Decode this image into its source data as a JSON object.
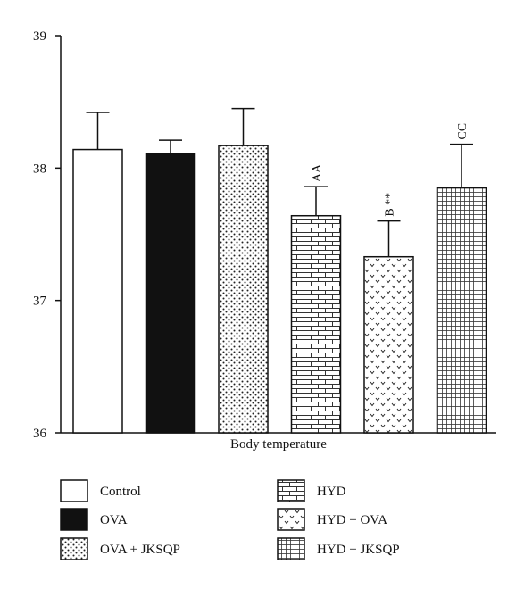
{
  "chart_data": {
    "type": "bar",
    "xlabel": "Body temperature",
    "ylabel": "",
    "ylim": [
      36,
      39
    ],
    "yticks": [
      36,
      37,
      38,
      39
    ],
    "grid": false,
    "legend_position": "bottom",
    "series": [
      {
        "name": "Control",
        "value": 38.14,
        "error": 0.28,
        "annotation": "",
        "pattern": "none"
      },
      {
        "name": "OVA",
        "value": 38.11,
        "error": 0.1,
        "annotation": "",
        "pattern": "solid"
      },
      {
        "name": "OVA + JKSQP",
        "value": 38.17,
        "error": 0.28,
        "annotation": "",
        "pattern": "dots"
      },
      {
        "name": "HYD",
        "value": 37.64,
        "error": 0.22,
        "annotation": "AA",
        "pattern": "bricks"
      },
      {
        "name": "HYD + OVA",
        "value": 37.33,
        "error": 0.27,
        "annotation": "B **",
        "pattern": "chevrons"
      },
      {
        "name": "HYD + JKSQP",
        "value": 37.85,
        "error": 0.33,
        "annotation": "CC",
        "pattern": "grid"
      }
    ]
  }
}
